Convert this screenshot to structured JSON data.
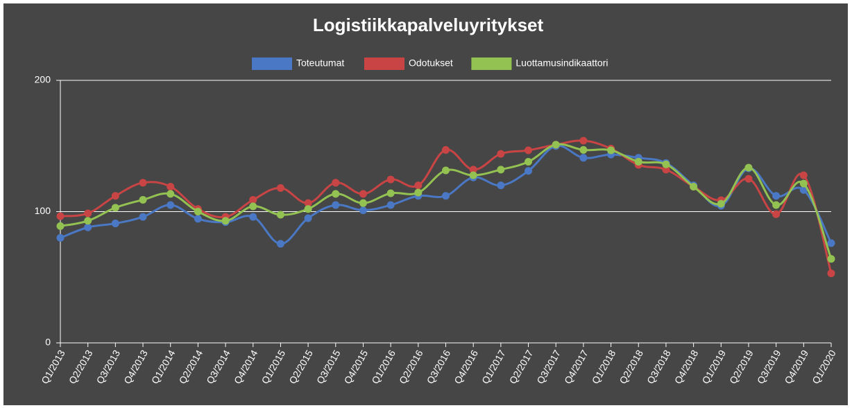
{
  "chart_data": {
    "type": "line",
    "title": "Logistiikkapalveluyritykset",
    "categories": [
      "Q1/2013",
      "Q2/2013",
      "Q3/2013",
      "Q4/2013",
      "Q1/2014",
      "Q2/2014",
      "Q3/2014",
      "Q4/2014",
      "Q1/2015",
      "Q2/2015",
      "Q3/2015",
      "Q4/2015",
      "Q1/2016",
      "Q2/2016",
      "Q3/2016",
      "Q4/2016",
      "Q1/2017",
      "Q2/2017",
      "Q3/2017",
      "Q4/2017",
      "Q1/2018",
      "Q2/2018",
      "Q3/2018",
      "Q4/2018",
      "Q1/2019",
      "Q2/2019",
      "Q3/2019",
      "Q4/2019",
      "Q1/2020"
    ],
    "series": [
      {
        "name": "Toteutumat",
        "color": "#4a78c4",
        "values": [
          80,
          88,
          91,
          96,
          105,
          94.5,
          92,
          96,
          75.5,
          95,
          105,
          101,
          105,
          112,
          112,
          126,
          120,
          131,
          150,
          141,
          143.5,
          141,
          137,
          120,
          104.5,
          133,
          112,
          116.5,
          76
        ]
      },
      {
        "name": "Odotukset",
        "color": "#c94444",
        "values": [
          96.5,
          98.7,
          112,
          122,
          119,
          102,
          96,
          109,
          118,
          106.5,
          122,
          113.5,
          124.5,
          120,
          147,
          132,
          144,
          146.7,
          151,
          154,
          148,
          135.6,
          132,
          119,
          108.7,
          125,
          98,
          127.7,
          53
        ]
      },
      {
        "name": "Luottamusindikaattori",
        "color": "#93c152",
        "values": [
          89,
          93,
          103,
          109,
          113.5,
          100,
          93,
          104,
          97.6,
          102,
          113.5,
          106.5,
          114,
          114.5,
          131.4,
          127.7,
          132,
          138,
          151,
          147,
          146.7,
          138,
          136,
          119,
          106,
          133.5,
          105,
          121.4,
          64
        ]
      }
    ],
    "ylim": [
      0,
      200
    ],
    "yticks": [
      0,
      100,
      200
    ],
    "grid": true
  }
}
